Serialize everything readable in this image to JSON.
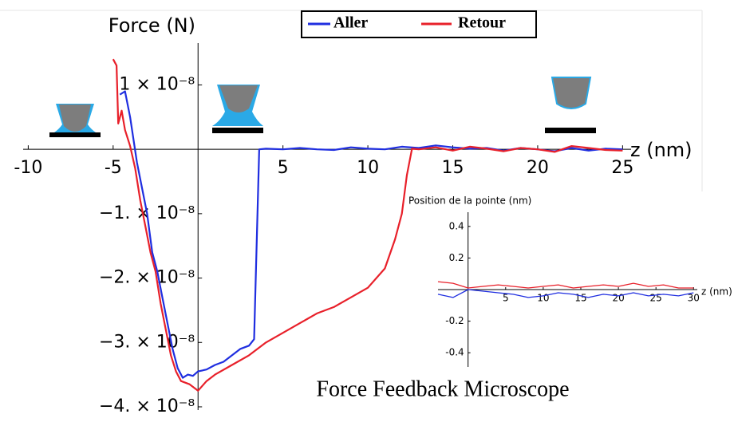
{
  "chart_data": [
    {
      "type": "line",
      "x_label": "z (nm)",
      "y_label": "Force (N)",
      "xlim": [
        -10.3,
        25.5
      ],
      "xticks": [
        -10,
        -5,
        5,
        10,
        15,
        20,
        25
      ],
      "ylim": [
        -4.05e-08,
        1.65e-08
      ],
      "yticks": [
        {
          "value": 1e-08,
          "label": "1 × 10⁻⁸"
        },
        {
          "value": -1e-08,
          "label": "−1. × 10⁻⁸"
        },
        {
          "value": -2e-08,
          "label": "−2. × 10⁻⁸"
        },
        {
          "value": -3e-08,
          "label": "−3. × 10⁻⁸"
        },
        {
          "value": -4e-08,
          "label": "−4. × 10⁻⁸"
        }
      ],
      "series": [
        {
          "name": "Aller",
          "color": "#1f2ee0",
          "x": [
            -4.6,
            -4.3,
            -4,
            -3.6,
            -3.3,
            -3,
            -2.7,
            -2.4,
            -2.1,
            -1.8,
            -1.5,
            -1.2,
            -0.9,
            -0.6,
            -0.3,
            0,
            0.5,
            1,
            1.5,
            2,
            2.5,
            3,
            3.3,
            3.6,
            4,
            5,
            6,
            7,
            8,
            9,
            10,
            11,
            12,
            13,
            14,
            15,
            16,
            17,
            18,
            19,
            20,
            21,
            22,
            23,
            24,
            25
          ],
          "values": [
            8.5e-09,
            9e-09,
            5e-09,
            -2e-09,
            -6e-09,
            -1e-08,
            -1.6e-08,
            -1.9e-08,
            -2.3e-08,
            -2.7e-08,
            -3.1e-08,
            -3.4e-08,
            -3.55e-08,
            -3.5e-08,
            -3.52e-08,
            -3.45e-08,
            -3.42e-08,
            -3.35e-08,
            -3.3e-08,
            -3.2e-08,
            -3.1e-08,
            -3.05e-08,
            -2.95e-08,
            0,
            1e-10,
            0,
            2e-10,
            0,
            -1e-10,
            3e-10,
            1e-10,
            0,
            4e-10,
            2e-10,
            6e-10,
            3e-10,
            1e-10,
            2e-10,
            -2e-10,
            2e-10,
            0,
            -3e-10,
            2e-10,
            -2e-10,
            1e-10,
            0
          ]
        },
        {
          "name": "Retour",
          "color": "#e8202a",
          "x": [
            -5,
            -4.8,
            -4.7,
            -4.5,
            -4.3,
            -4,
            -3.7,
            -3.4,
            -3.1,
            -2.8,
            -2.5,
            -2.2,
            -1.9,
            -1.6,
            -1.3,
            -1,
            -0.5,
            0,
            0.5,
            1,
            2,
            3,
            4,
            5,
            6,
            7,
            8,
            9,
            10,
            11,
            11.6,
            12,
            12.3,
            12.6,
            13,
            14,
            15,
            16,
            17,
            18,
            19,
            20,
            21,
            22,
            23,
            24,
            25
          ],
          "values": [
            1.4e-08,
            1.3e-08,
            4e-09,
            6e-09,
            3e-09,
            5e-10,
            -3e-09,
            -8e-09,
            -1.2e-08,
            -1.6e-08,
            -1.9e-08,
            -2.4e-08,
            -2.8e-08,
            -3.2e-08,
            -3.45e-08,
            -3.6e-08,
            -3.65e-08,
            -3.75e-08,
            -3.6e-08,
            -3.5e-08,
            -3.35e-08,
            -3.2e-08,
            -3e-08,
            -2.85e-08,
            -2.7e-08,
            -2.55e-08,
            -2.45e-08,
            -2.3e-08,
            -2.15e-08,
            -1.85e-08,
            -1.4e-08,
            -1e-08,
            -4e-09,
            1e-10,
            0,
            3e-10,
            -2e-10,
            4e-10,
            1e-10,
            -3e-10,
            2e-10,
            0,
            -4e-10,
            5e-10,
            2e-10,
            -1e-10,
            -2e-10
          ]
        }
      ]
    },
    {
      "type": "line",
      "title": "Position de la pointe (nm)",
      "x_label": "z (nm)",
      "xlim": [
        -4,
        30.5
      ],
      "xticks": [
        5,
        10,
        15,
        20,
        25,
        30
      ],
      "ylim": [
        -0.49,
        0.49
      ],
      "yticks": [
        0.4,
        0.2,
        -0.2,
        -0.4
      ],
      "series": [
        {
          "name": "Aller",
          "color": "#1f2ee0",
          "x": [
            -4,
            -2,
            0,
            2,
            4,
            6,
            8,
            10,
            12,
            14,
            16,
            18,
            20,
            22,
            24,
            26,
            28,
            30
          ],
          "values": [
            -0.03,
            -0.05,
            0,
            -0.01,
            -0.02,
            -0.03,
            -0.05,
            -0.04,
            -0.02,
            -0.03,
            -0.05,
            -0.03,
            -0.04,
            -0.02,
            -0.04,
            -0.03,
            -0.04,
            -0.02
          ]
        },
        {
          "name": "Retour",
          "color": "#e8202a",
          "x": [
            -4,
            -2,
            0,
            2,
            4,
            6,
            8,
            10,
            12,
            14,
            16,
            18,
            20,
            22,
            24,
            26,
            28,
            30
          ],
          "values": [
            0.05,
            0.04,
            0.01,
            0.02,
            0.03,
            0.02,
            0.01,
            0.02,
            0.03,
            0.01,
            0.02,
            0.03,
            0.02,
            0.04,
            0.02,
            0.03,
            0.01,
            0.01
          ]
        }
      ]
    }
  ],
  "caption": "Force Feedback Microscope"
}
